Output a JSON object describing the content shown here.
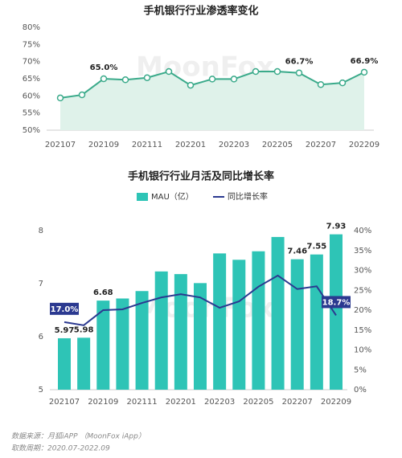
{
  "chart_data": [
    {
      "type": "line",
      "title": "手机银行行业渗透率变化",
      "categories": [
        "202107",
        null,
        "202109",
        null,
        "202111",
        null,
        "202201",
        null,
        "202203",
        null,
        "202205",
        null,
        "202207",
        null,
        "202209"
      ],
      "values": [
        59.4,
        60.3,
        65.0,
        64.7,
        65.3,
        67.1,
        63.1,
        64.9,
        64.9,
        67.1,
        67.1,
        66.7,
        63.3,
        63.8,
        66.9
      ],
      "value_labels": [
        null,
        null,
        "65.0%",
        null,
        null,
        null,
        null,
        null,
        null,
        null,
        null,
        "66.7%",
        null,
        null,
        "66.9%"
      ],
      "color": "#3aaa8a",
      "ylim": [
        50,
        80
      ],
      "yticks": [
        {
          "value": 50,
          "label": "50%"
        },
        {
          "value": 55,
          "label": "55%"
        },
        {
          "value": 60,
          "label": "60%"
        },
        {
          "value": 65,
          "label": "65%"
        },
        {
          "value": 70,
          "label": "70%"
        },
        {
          "value": 75,
          "label": "75%"
        },
        {
          "value": 80,
          "label": "80%"
        }
      ],
      "grid": false
    },
    {
      "type": "bar",
      "title": "手机银行行业月活及同比增长率",
      "categories": [
        "202107",
        null,
        "202109",
        null,
        "202111",
        null,
        "202201",
        null,
        "202203",
        null,
        "202205",
        null,
        "202207",
        null,
        "202209"
      ],
      "series": [
        {
          "name": "MAU（亿）",
          "type": "bar",
          "color": "#2ec4b6",
          "values": [
            5.97,
            5.98,
            6.68,
            6.72,
            6.86,
            7.23,
            7.18,
            7.01,
            7.57,
            7.45,
            7.61,
            7.88,
            7.46,
            7.55,
            7.93
          ],
          "value_labels": [
            "5.97",
            "5.98",
            "6.68",
            null,
            null,
            null,
            null,
            null,
            null,
            null,
            null,
            null,
            "7.46",
            "7.55",
            "7.93"
          ]
        },
        {
          "name": "同比增长率",
          "type": "line",
          "axis": "y2",
          "color": "#2b3990",
          "values": [
            17.0,
            16.2,
            20.0,
            20.2,
            21.8,
            23.2,
            24.0,
            23.2,
            20.6,
            22.2,
            25.9,
            28.7,
            25.3,
            26.0,
            18.7
          ],
          "value_labels": [
            "17.0%",
            null,
            null,
            null,
            null,
            null,
            null,
            null,
            null,
            null,
            null,
            null,
            null,
            null,
            "18.7%"
          ]
        }
      ],
      "ylim": [
        5,
        8
      ],
      "yticks": [
        5,
        6,
        7,
        8
      ],
      "y2lim": [
        0,
        40
      ],
      "y2ticks": [
        {
          "value": 0,
          "label": "0%"
        },
        {
          "value": 5,
          "label": "5%"
        },
        {
          "value": 10,
          "label": "10%"
        },
        {
          "value": 15,
          "label": "15%"
        },
        {
          "value": 20,
          "label": "20%"
        },
        {
          "value": 25,
          "label": "25%"
        },
        {
          "value": 30,
          "label": "30%"
        },
        {
          "value": 35,
          "label": "35%"
        },
        {
          "value": 40,
          "label": "40%"
        }
      ],
      "grid": false
    }
  ],
  "watermark": "MoonFox",
  "footer": {
    "source": "数据来源：月狐iAPP （MoonFox iApp）",
    "period": "取数周期：2020.07-2022.09"
  }
}
